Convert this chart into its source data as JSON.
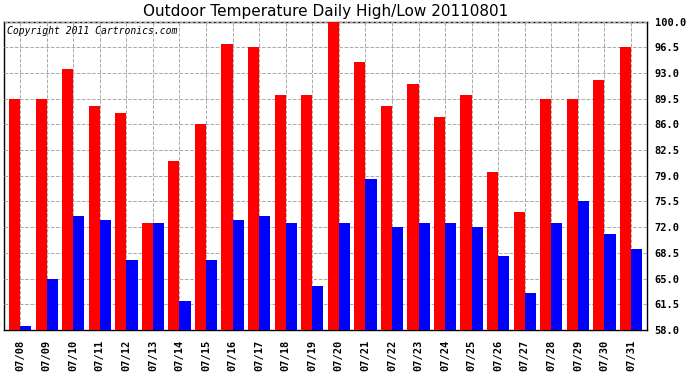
{
  "title": "Outdoor Temperature Daily High/Low 20110801",
  "copyright": "Copyright 2011 Cartronics.com",
  "dates": [
    "07/08",
    "07/09",
    "07/10",
    "07/11",
    "07/12",
    "07/13",
    "07/14",
    "07/15",
    "07/16",
    "07/17",
    "07/18",
    "07/19",
    "07/20",
    "07/21",
    "07/22",
    "07/23",
    "07/24",
    "07/25",
    "07/26",
    "07/27",
    "07/28",
    "07/29",
    "07/30",
    "07/31"
  ],
  "highs": [
    89.5,
    89.5,
    93.5,
    88.5,
    87.5,
    72.5,
    81.0,
    86.0,
    97.0,
    96.5,
    90.0,
    90.0,
    100.5,
    94.5,
    88.5,
    91.5,
    87.0,
    90.0,
    79.5,
    74.0,
    89.5,
    89.5,
    92.0,
    96.5
  ],
  "lows": [
    58.5,
    65.0,
    73.5,
    73.0,
    67.5,
    72.5,
    62.0,
    67.5,
    73.0,
    73.5,
    72.5,
    64.0,
    72.5,
    78.5,
    72.0,
    72.5,
    72.5,
    72.0,
    68.0,
    63.0,
    72.5,
    75.5,
    71.0,
    69.0
  ],
  "high_color": "#ff0000",
  "low_color": "#0000ff",
  "bg_color": "#ffffff",
  "plot_bg_color": "#ffffff",
  "grid_color": "#aaaaaa",
  "ymin": 58.0,
  "ymax": 100.0,
  "yticks": [
    58.0,
    61.5,
    65.0,
    68.5,
    72.0,
    75.5,
    79.0,
    82.5,
    86.0,
    89.5,
    93.0,
    96.5,
    100.0
  ],
  "title_fontsize": 11,
  "copyright_fontsize": 7,
  "tick_fontsize": 7.5,
  "bar_width": 0.42
}
